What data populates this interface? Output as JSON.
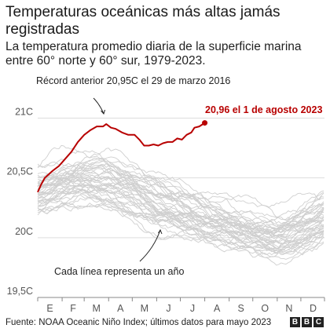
{
  "header": {
    "title": "Temperaturas oceánicas más altas jamás registradas",
    "subtitle": "La temperatura promedio diaria de la superficie marina entre 60° norte y 60° sur, 1979-2023."
  },
  "footer": {
    "source": "Fuente: NOAA Oceanic Niño Index; últimos datos para mayo 2023",
    "logo_letters": [
      "B",
      "B",
      "C"
    ]
  },
  "colors": {
    "highlight": "#b80000",
    "background_series": "#cfcfcf",
    "gridline": "#dddddd",
    "text": "#222222"
  },
  "chart_data": {
    "type": "line",
    "y_tick_labels": [
      "21C",
      "20,5C",
      "20C",
      "19,5C"
    ],
    "y_ticks": [
      21.0,
      20.5,
      20.0,
      19.5
    ],
    "ylim": [
      19.5,
      21.2
    ],
    "x_tick_labels": [
      "E",
      "F",
      "M",
      "A",
      "M",
      "J",
      "J",
      "A",
      "S",
      "O",
      "N",
      "D"
    ],
    "xlim": [
      1,
      365
    ],
    "grid": true,
    "annotations": {
      "record_previous": "Récord anterior 20,95C el 29 de marzo 2016",
      "latest_value": "20,96 el 1 de agosto 2023",
      "background_lines": "Cada línea representa un año"
    },
    "highlight_series": {
      "x": [
        1,
        5,
        10,
        15,
        20,
        28,
        36,
        44,
        52,
        60,
        68,
        76,
        84,
        88,
        94,
        100,
        108,
        116,
        124,
        130,
        136,
        142,
        148,
        154,
        160,
        166,
        172,
        178,
        184,
        190,
        196,
        200,
        206,
        213
      ],
      "y": [
        20.38,
        20.44,
        20.5,
        20.53,
        20.56,
        20.6,
        20.66,
        20.72,
        20.8,
        20.86,
        20.9,
        20.93,
        20.93,
        20.95,
        20.92,
        20.91,
        20.88,
        20.86,
        20.86,
        20.82,
        20.77,
        20.77,
        20.78,
        20.77,
        20.79,
        20.8,
        20.8,
        20.83,
        20.82,
        20.86,
        20.88,
        20.92,
        20.93,
        20.96
      ]
    },
    "background_series_count": 44,
    "background_envelope": {
      "x": [
        1,
        32,
        60,
        91,
        121,
        152,
        182,
        213,
        244,
        274,
        305,
        335,
        365
      ],
      "y_mid": [
        20.36,
        20.45,
        20.49,
        20.48,
        20.4,
        20.28,
        20.2,
        20.12,
        20.07,
        20.02,
        20.0,
        20.08,
        20.17
      ],
      "y_spread": [
        0.2,
        0.22,
        0.24,
        0.24,
        0.24,
        0.24,
        0.23,
        0.21,
        0.19,
        0.2,
        0.21,
        0.21,
        0.2
      ]
    }
  }
}
